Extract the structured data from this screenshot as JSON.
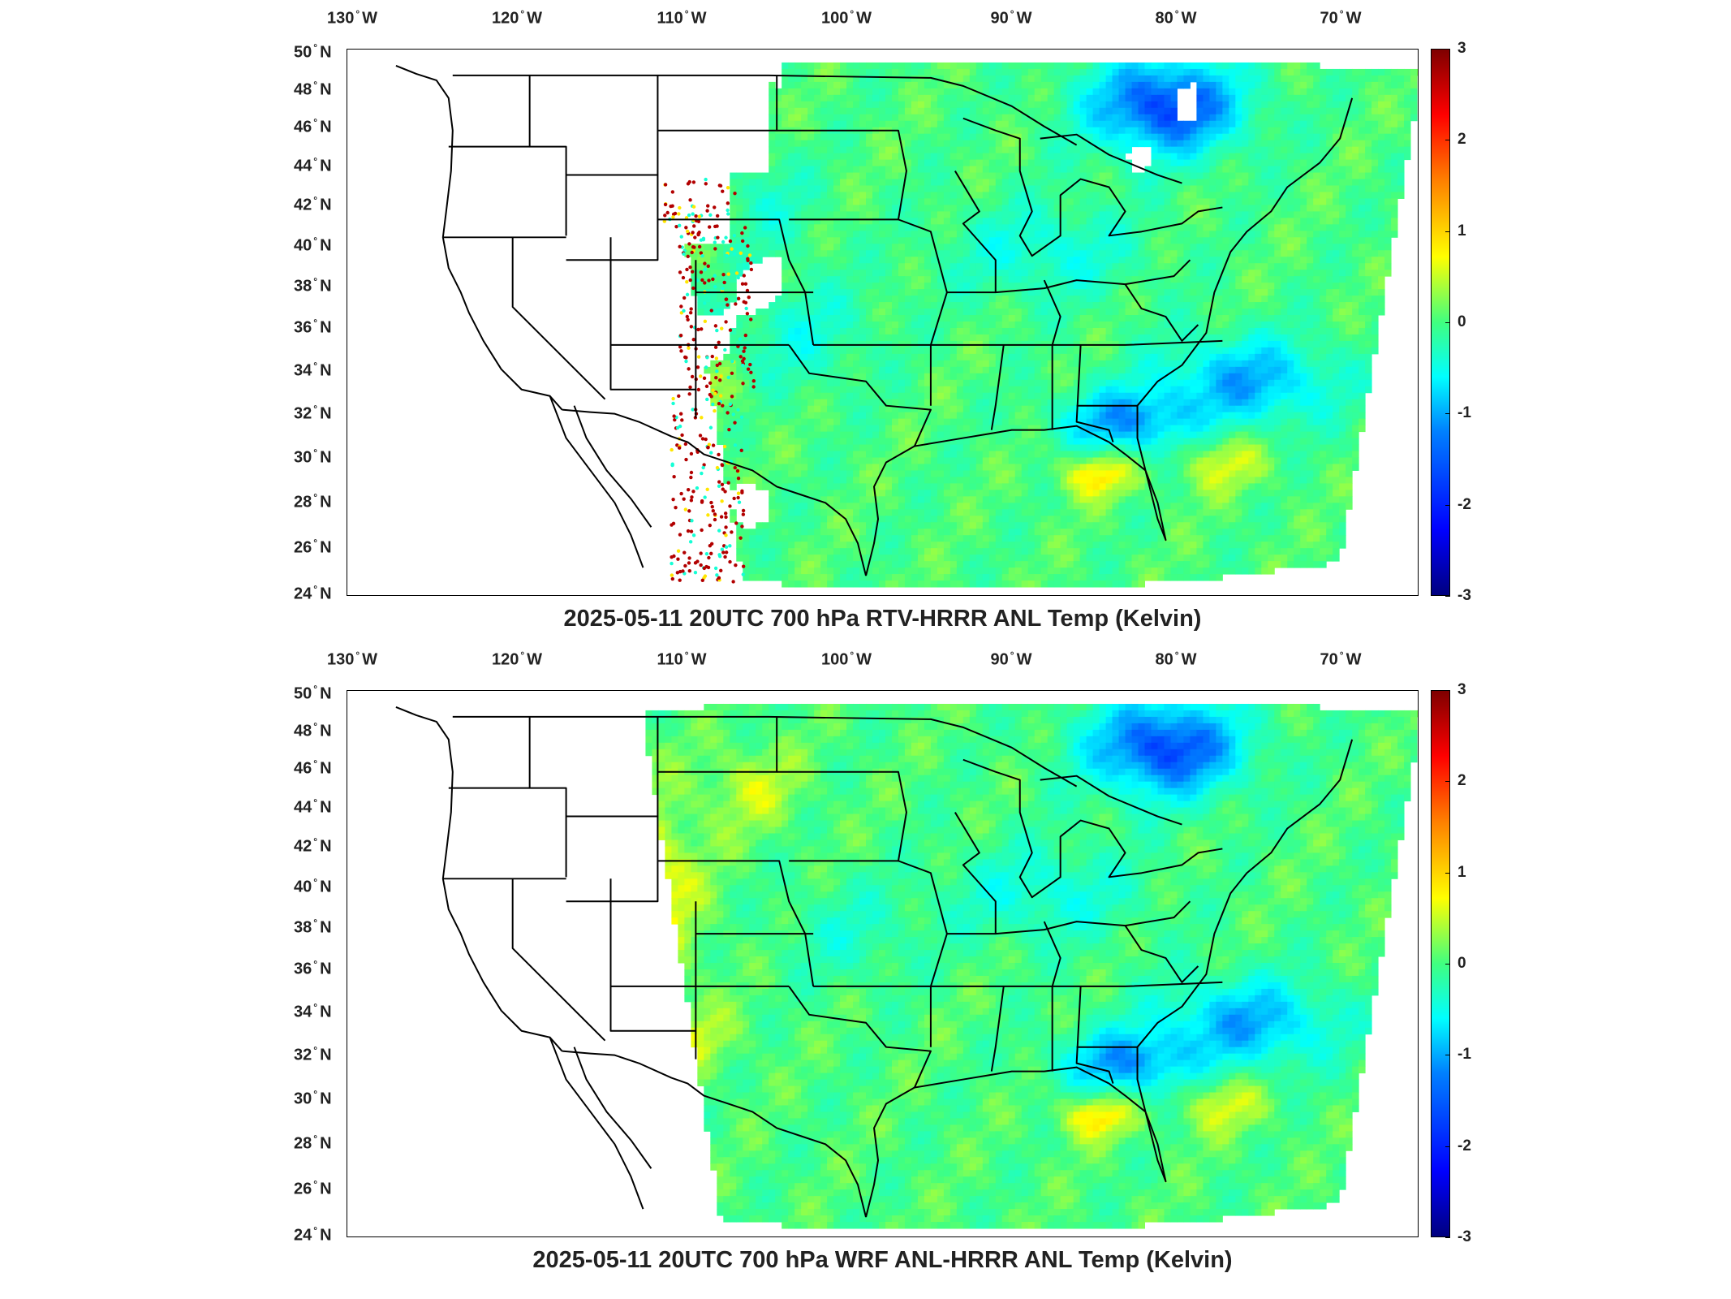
{
  "panels": [
    {
      "title": "2025-05-11 20UTC 700 hPa RTV-HRRR ANL Temp (Kelvin)",
      "pattern": "rtv",
      "lon_ticks": [
        {
          "deg": "130",
          "hemi": "W"
        },
        {
          "deg": "120",
          "hemi": "W"
        },
        {
          "deg": "110",
          "hemi": "W"
        },
        {
          "deg": "100",
          "hemi": "W"
        },
        {
          "deg": "90",
          "hemi": "W"
        },
        {
          "deg": "80",
          "hemi": "W"
        },
        {
          "deg": "70",
          "hemi": "W"
        }
      ],
      "lat_ticks": [
        {
          "deg": "50",
          "hemi": "N"
        },
        {
          "deg": "48",
          "hemi": "N"
        },
        {
          "deg": "46",
          "hemi": "N"
        },
        {
          "deg": "44",
          "hemi": "N"
        },
        {
          "deg": "42",
          "hemi": "N"
        },
        {
          "deg": "40",
          "hemi": "N"
        },
        {
          "deg": "38",
          "hemi": "N"
        },
        {
          "deg": "36",
          "hemi": "N"
        },
        {
          "deg": "34",
          "hemi": "N"
        },
        {
          "deg": "32",
          "hemi": "N"
        },
        {
          "deg": "30",
          "hemi": "N"
        },
        {
          "deg": "28",
          "hemi": "N"
        },
        {
          "deg": "26",
          "hemi": "N"
        },
        {
          "deg": "24",
          "hemi": "N"
        }
      ],
      "colorbar_ticks": [
        "3",
        "2",
        "1",
        "0",
        "-1",
        "-2",
        "-3"
      ]
    },
    {
      "title": "2025-05-11 20UTC 700 hPa WRF ANL-HRRR ANL Temp (Kelvin)",
      "pattern": "wrf",
      "lon_ticks": [
        {
          "deg": "130",
          "hemi": "W"
        },
        {
          "deg": "120",
          "hemi": "W"
        },
        {
          "deg": "110",
          "hemi": "W"
        },
        {
          "deg": "100",
          "hemi": "W"
        },
        {
          "deg": "90",
          "hemi": "W"
        },
        {
          "deg": "80",
          "hemi": "W"
        },
        {
          "deg": "70",
          "hemi": "W"
        }
      ],
      "lat_ticks": [
        {
          "deg": "50",
          "hemi": "N"
        },
        {
          "deg": "48",
          "hemi": "N"
        },
        {
          "deg": "46",
          "hemi": "N"
        },
        {
          "deg": "44",
          "hemi": "N"
        },
        {
          "deg": "42",
          "hemi": "N"
        },
        {
          "deg": "40",
          "hemi": "N"
        },
        {
          "deg": "38",
          "hemi": "N"
        },
        {
          "deg": "36",
          "hemi": "N"
        },
        {
          "deg": "34",
          "hemi": "N"
        },
        {
          "deg": "32",
          "hemi": "N"
        },
        {
          "deg": "30",
          "hemi": "N"
        },
        {
          "deg": "28",
          "hemi": "N"
        },
        {
          "deg": "26",
          "hemi": "N"
        },
        {
          "deg": "24",
          "hemi": "N"
        }
      ],
      "colorbar_ticks": [
        "3",
        "2",
        "1",
        "0",
        "-1",
        "-2",
        "-3"
      ]
    }
  ],
  "colormap": [
    "#00007f",
    "#0000ff",
    "#0080ff",
    "#00ffff",
    "#40ff80",
    "#ffff00",
    "#ff8000",
    "#ff0000",
    "#7f0000"
  ]
}
